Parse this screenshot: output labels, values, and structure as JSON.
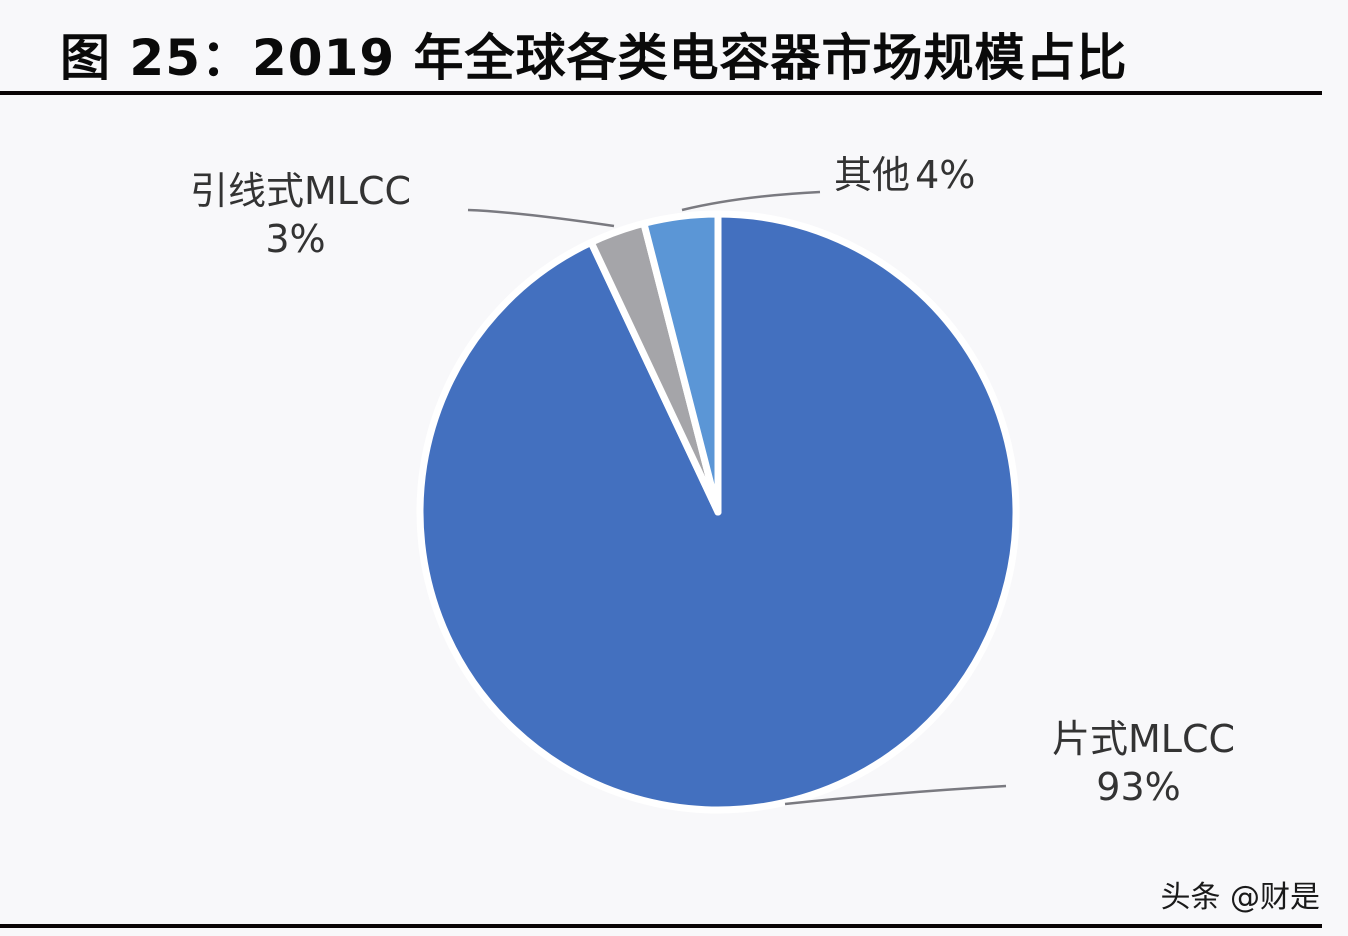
{
  "title": "图 25：2019 年全球各类电容器市场规模占比",
  "watermark": "头条 @财是",
  "colors": {
    "chip_mlcc": "#4370bf",
    "leaded_mlcc": "#a5a5a9",
    "other": "#5b96d6",
    "background": "#f8f8fa",
    "rule": "#0a0505"
  },
  "labels": {
    "chip_mlcc": {
      "name": "片式MLCC",
      "pct": "93%"
    },
    "leaded_mlcc": {
      "name": "引线式MLCC",
      "pct": "3%"
    },
    "other": {
      "name": "其他",
      "pct": "4%",
      "full": "其他 4%"
    }
  },
  "chart_data": {
    "type": "pie",
    "title": "图 25：2019 年全球各类电容器市场规模占比",
    "categories": [
      "片式MLCC",
      "引线式MLCC",
      "其他"
    ],
    "values": [
      93,
      3,
      4
    ],
    "unit": "%",
    "start_angle": "12 o'clock, clockwise",
    "colors": [
      "#4370bf",
      "#a5a5a9",
      "#5b96d6"
    ],
    "legend": "none (data labels with leader lines)"
  }
}
